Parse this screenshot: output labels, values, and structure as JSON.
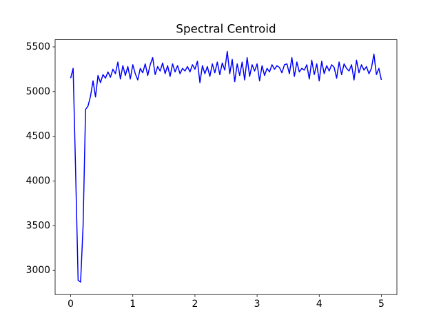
{
  "chart_data": {
    "type": "line",
    "title": "Spectral Centroid",
    "x": [
      0,
      0.04,
      0.08,
      0.12,
      0.16,
      0.2,
      0.24,
      0.28,
      0.32,
      0.36,
      0.4,
      0.44,
      0.48,
      0.52,
      0.56,
      0.6,
      0.64,
      0.68,
      0.72,
      0.76,
      0.8,
      0.84,
      0.88,
      0.92,
      0.96,
      1,
      1.04,
      1.08,
      1.12,
      1.16,
      1.2,
      1.24,
      1.28,
      1.32,
      1.36,
      1.4,
      1.44,
      1.48,
      1.52,
      1.56,
      1.6,
      1.64,
      1.68,
      1.72,
      1.76,
      1.8,
      1.84,
      1.88,
      1.92,
      1.96,
      2,
      2.04,
      2.08,
      2.12,
      2.16,
      2.2,
      2.24,
      2.28,
      2.32,
      2.36,
      2.4,
      2.44,
      2.48,
      2.52,
      2.56,
      2.6,
      2.64,
      2.68,
      2.72,
      2.76,
      2.8,
      2.84,
      2.88,
      2.92,
      2.96,
      3,
      3.04,
      3.08,
      3.12,
      3.16,
      3.2,
      3.24,
      3.28,
      3.32,
      3.36,
      3.4,
      3.44,
      3.48,
      3.52,
      3.56,
      3.6,
      3.64,
      3.68,
      3.72,
      3.76,
      3.8,
      3.84,
      3.88,
      3.92,
      3.96,
      4,
      4.04,
      4.08,
      4.12,
      4.16,
      4.2,
      4.24,
      4.28,
      4.32,
      4.36,
      4.4,
      4.44,
      4.48,
      4.52,
      4.56,
      4.6,
      4.64,
      4.68,
      4.72,
      4.76,
      4.8,
      4.84,
      4.88,
      4.92,
      4.96,
      5
    ],
    "series": [
      {
        "color": "#0000ff",
        "values": [
          5150,
          5260,
          4100,
          2890,
          2870,
          3500,
          4800,
          4840,
          4950,
          5120,
          4940,
          5180,
          5100,
          5190,
          5150,
          5220,
          5160,
          5250,
          5200,
          5330,
          5140,
          5290,
          5180,
          5280,
          5140,
          5300,
          5200,
          5130,
          5260,
          5210,
          5310,
          5180,
          5300,
          5380,
          5190,
          5280,
          5230,
          5320,
          5200,
          5290,
          5170,
          5310,
          5220,
          5290,
          5200,
          5260,
          5230,
          5280,
          5220,
          5300,
          5250,
          5340,
          5100,
          5290,
          5200,
          5280,
          5170,
          5310,
          5210,
          5330,
          5190,
          5320,
          5240,
          5450,
          5200,
          5360,
          5110,
          5310,
          5180,
          5330,
          5130,
          5380,
          5170,
          5300,
          5230,
          5310,
          5120,
          5290,
          5180,
          5260,
          5220,
          5300,
          5250,
          5290,
          5270,
          5210,
          5300,
          5310,
          5200,
          5380,
          5170,
          5330,
          5220,
          5260,
          5240,
          5300,
          5140,
          5350,
          5190,
          5310,
          5120,
          5340,
          5200,
          5290,
          5230,
          5300,
          5270,
          5150,
          5330,
          5190,
          5310,
          5260,
          5230,
          5300,
          5130,
          5350,
          5210,
          5300,
          5240,
          5280,
          5200,
          5260,
          5420,
          5190,
          5260,
          5130
        ]
      }
    ],
    "xlim": [
      -0.25,
      5.25
    ],
    "xticks": [
      0,
      1,
      2,
      3,
      4,
      5
    ],
    "ylim": [
      2730,
      5580
    ],
    "yticks": [
      3000,
      3500,
      4000,
      4500,
      5000,
      5500
    ]
  }
}
